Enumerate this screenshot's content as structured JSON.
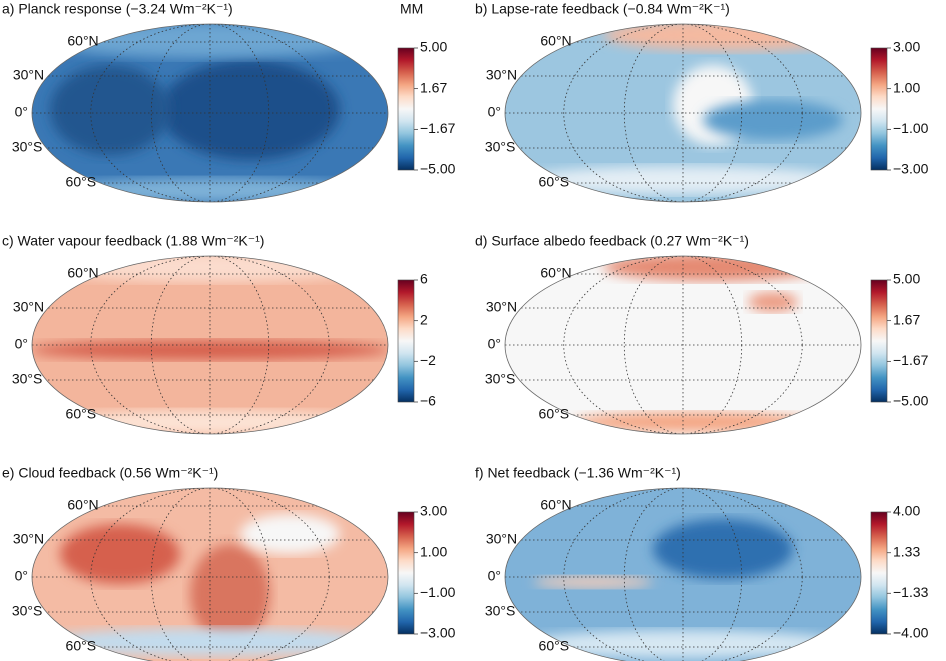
{
  "model_label": "MM",
  "panels": [
    {
      "title": "a) Planck response (−3.24 Wm⁻²K⁻¹)",
      "lat_labels": [
        "60°N",
        "30°N",
        "0°",
        "30°S",
        "60°S"
      ],
      "colorbar": {
        "lim": [
          -5,
          5
        ],
        "ticks": [
          {
            "value": 5,
            "label": "5.00"
          },
          {
            "value": 1.67,
            "label": "1.67"
          },
          {
            "value": -1.67,
            "label": "−1.67"
          },
          {
            "value": -5,
            "label": "−5.00"
          }
        ]
      }
    },
    {
      "title": "b) Lapse-rate feedback (−0.84 Wm⁻²K⁻¹)",
      "lat_labels": [
        "60°N",
        "30°N",
        "0°",
        "30°S",
        "60°S"
      ],
      "colorbar": {
        "lim": [
          -3,
          3
        ],
        "ticks": [
          {
            "value": 3,
            "label": "3.00"
          },
          {
            "value": 1,
            "label": "1.00"
          },
          {
            "value": -1,
            "label": "−1.00"
          },
          {
            "value": -3,
            "label": "−3.00"
          }
        ]
      }
    },
    {
      "title": "c) Water vapour feedback (1.88 Wm⁻²K⁻¹)",
      "lat_labels": [
        "60°N",
        "30°N",
        "0°",
        "30°S",
        "60°S"
      ],
      "colorbar": {
        "lim": [
          -6,
          6
        ],
        "ticks": [
          6,
          2,
          {
            "value": -2,
            "label": "−2"
          },
          {
            "value": -6,
            "label": "−6"
          }
        ]
      }
    },
    {
      "title": "d) Surface albedo feedback (0.27 Wm⁻²K⁻¹)",
      "lat_labels": [
        "60°N",
        "30°N",
        "0°",
        "30°S",
        "60°S"
      ],
      "colorbar": {
        "lim": [
          -5,
          5
        ],
        "ticks": [
          {
            "value": 5,
            "label": "5.00"
          },
          {
            "value": 1.67,
            "label": "1.67"
          },
          {
            "value": -1.67,
            "label": "−1.67"
          },
          {
            "value": -5,
            "label": "−5.00"
          }
        ]
      }
    },
    {
      "title": "e) Cloud feedback (0.56 Wm⁻²K⁻¹)",
      "lat_labels": [
        "60°N",
        "30°N",
        "0°",
        "30°S",
        "60°S"
      ],
      "colorbar": {
        "lim": [
          -3,
          3
        ],
        "ticks": [
          {
            "value": 3,
            "label": "3.00"
          },
          {
            "value": 1,
            "label": "1.00"
          },
          {
            "value": -1,
            "label": "−1.00"
          },
          {
            "value": -3,
            "label": "−3.00"
          }
        ]
      }
    },
    {
      "title": "f) Net feedback (−1.36 Wm⁻²K⁻¹)",
      "lat_labels": [
        "60°N",
        "30°N",
        "0°",
        "30°S",
        "60°S"
      ],
      "colorbar": {
        "lim": [
          -4,
          4
        ],
        "ticks": [
          {
            "value": 4,
            "label": "4.00"
          },
          {
            "value": 1.33,
            "label": "1.33"
          },
          {
            "value": -1.33,
            "label": "−1.33"
          },
          {
            "value": -4,
            "label": "−4.00"
          }
        ]
      }
    }
  ]
}
